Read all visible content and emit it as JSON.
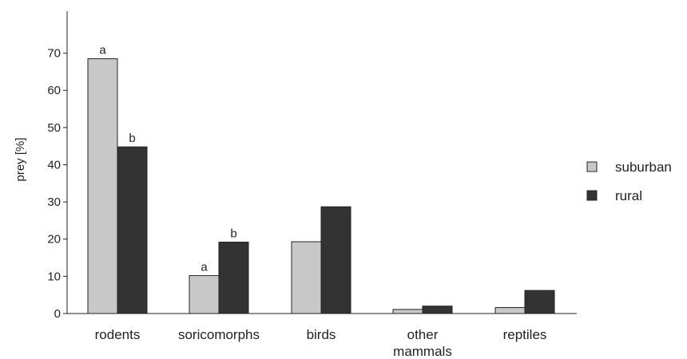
{
  "chart_data": {
    "type": "bar",
    "title": "",
    "xlabel": "",
    "ylabel": "prey [%]",
    "ylim": [
      0,
      80
    ],
    "yticks": [
      0,
      10,
      20,
      30,
      40,
      50,
      60,
      70
    ],
    "grid": false,
    "legend_position": "right",
    "categories": [
      [
        "rodents"
      ],
      [
        "soricomorphs"
      ],
      [
        "birds"
      ],
      [
        "other",
        "mammals"
      ],
      [
        "reptiles"
      ]
    ],
    "series": [
      {
        "name": "suburban",
        "color": "#c8c8c8",
        "values": [
          68.5,
          10.2,
          19.3,
          1.1,
          1.6
        ],
        "annotations": [
          "a",
          "a",
          "",
          "",
          ""
        ]
      },
      {
        "name": "rural",
        "color": "#333333",
        "values": [
          44.8,
          19.2,
          28.7,
          2.0,
          6.2
        ],
        "annotations": [
          "b",
          "b",
          "",
          "",
          ""
        ]
      }
    ]
  }
}
